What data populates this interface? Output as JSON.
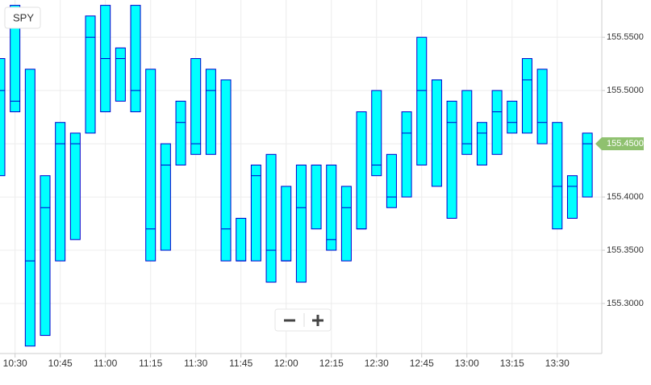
{
  "chart_data": {
    "type": "range",
    "categories": [
      null,
      "10:30",
      null,
      null,
      "10:45",
      null,
      null,
      "11:00",
      null,
      null,
      "11:15",
      null,
      null,
      "11:30",
      null,
      null,
      "11:45",
      null,
      null,
      "12:00",
      null,
      null,
      "12:15",
      null,
      null,
      "12:30",
      null,
      null,
      "12:45",
      null,
      null,
      "13:00",
      null,
      null,
      "13:15",
      null,
      null,
      "13:30",
      null,
      null
    ],
    "series": [
      {
        "name": "SPY",
        "color": "#00ffff",
        "edge_color": "#0000cc",
        "high": [
          155.53,
          155.58,
          155.52,
          155.42,
          155.47,
          155.46,
          155.57,
          155.58,
          155.54,
          155.58,
          155.52,
          155.45,
          155.49,
          155.53,
          155.52,
          155.51,
          155.38,
          155.43,
          155.44,
          155.41,
          155.43,
          155.43,
          155.43,
          155.41,
          155.48,
          155.5,
          155.44,
          155.48,
          155.55,
          155.51,
          155.49,
          155.5,
          155.47,
          155.5,
          155.49,
          155.53,
          155.52,
          155.47,
          155.42,
          155.46
        ],
        "low": [
          155.42,
          155.48,
          155.26,
          155.27,
          155.34,
          155.36,
          155.46,
          155.48,
          155.49,
          155.48,
          155.34,
          155.35,
          155.43,
          155.44,
          155.44,
          155.34,
          155.34,
          155.34,
          155.32,
          155.34,
          155.32,
          155.37,
          155.35,
          155.34,
          155.37,
          155.42,
          155.39,
          155.4,
          155.43,
          155.41,
          155.38,
          155.44,
          155.43,
          155.44,
          155.46,
          155.46,
          155.45,
          155.37,
          155.38,
          155.4
        ],
        "close": [
          155.5,
          155.49,
          155.34,
          155.39,
          155.45,
          155.45,
          155.55,
          155.53,
          155.53,
          155.5,
          155.37,
          155.43,
          155.47,
          155.45,
          155.5,
          155.37,
          155.34,
          155.42,
          155.35,
          155.34,
          155.39,
          155.43,
          155.36,
          155.39,
          155.37,
          155.43,
          155.4,
          155.46,
          155.5,
          155.51,
          155.47,
          155.45,
          155.46,
          155.48,
          155.47,
          155.51,
          155.47,
          155.41,
          155.41,
          155.45
        ]
      }
    ],
    "ylim": [
      155.253,
      155.585
    ],
    "yticks": [
      {
        "value": 155.3,
        "label": "155.3000"
      },
      {
        "value": 155.35,
        "label": "155.3500"
      },
      {
        "value": 155.4,
        "label": "155.4000"
      },
      {
        "value": 155.45,
        "label": "155.4500"
      },
      {
        "value": 155.5,
        "label": "155.5000"
      },
      {
        "value": 155.55,
        "label": "155.5500"
      }
    ],
    "last_price": {
      "value": 155.45,
      "label": "155.4500",
      "color": "#8fc16f"
    },
    "grid": true
  }
}
